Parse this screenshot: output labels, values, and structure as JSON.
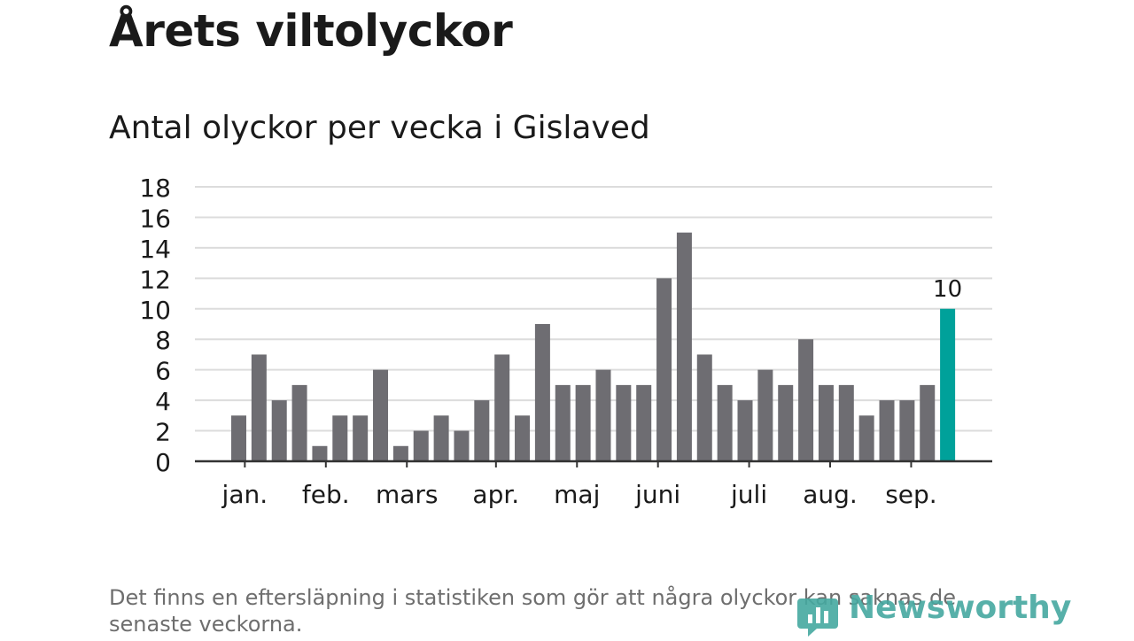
{
  "title": "Årets viltolyckor",
  "subtitle": "Antal olyckor per vecka i Gislaved",
  "footnote": "Det finns en eftersläpning i statistiken som gör att några olyckor kan saknas de senaste veckorna.",
  "brand": "Newsworthy",
  "colors": {
    "bar": "#6e6d72",
    "highlight": "#00a19a",
    "grid": "#dcdcdc",
    "axis": "#333333",
    "brand": "#45a8a0"
  },
  "chart_data": {
    "type": "bar",
    "title": "Antal olyckor per vecka i Gislaved",
    "xlabel": "",
    "ylabel": "",
    "ylim": [
      0,
      18
    ],
    "yticks": [
      0,
      2,
      4,
      6,
      8,
      10,
      12,
      14,
      16,
      18
    ],
    "grid": true,
    "values": [
      3,
      7,
      4,
      5,
      1,
      3,
      3,
      6,
      1,
      2,
      3,
      2,
      4,
      7,
      3,
      9,
      5,
      5,
      6,
      5,
      5,
      12,
      15,
      7,
      5,
      4,
      6,
      5,
      8,
      5,
      5,
      3,
      4,
      4,
      5,
      10
    ],
    "highlight_index": 35,
    "highlight_label": "10",
    "month_labels": [
      {
        "label": "jan.",
        "bar": 0.3
      },
      {
        "label": "feb.",
        "bar": 4.3
      },
      {
        "label": "mars",
        "bar": 8.3
      },
      {
        "label": "apr.",
        "bar": 12.7
      },
      {
        "label": "maj",
        "bar": 16.7
      },
      {
        "label": "juni",
        "bar": 20.7
      },
      {
        "label": "juli",
        "bar": 25.2
      },
      {
        "label": "aug.",
        "bar": 29.2
      },
      {
        "label": "sep.",
        "bar": 33.2
      }
    ]
  }
}
